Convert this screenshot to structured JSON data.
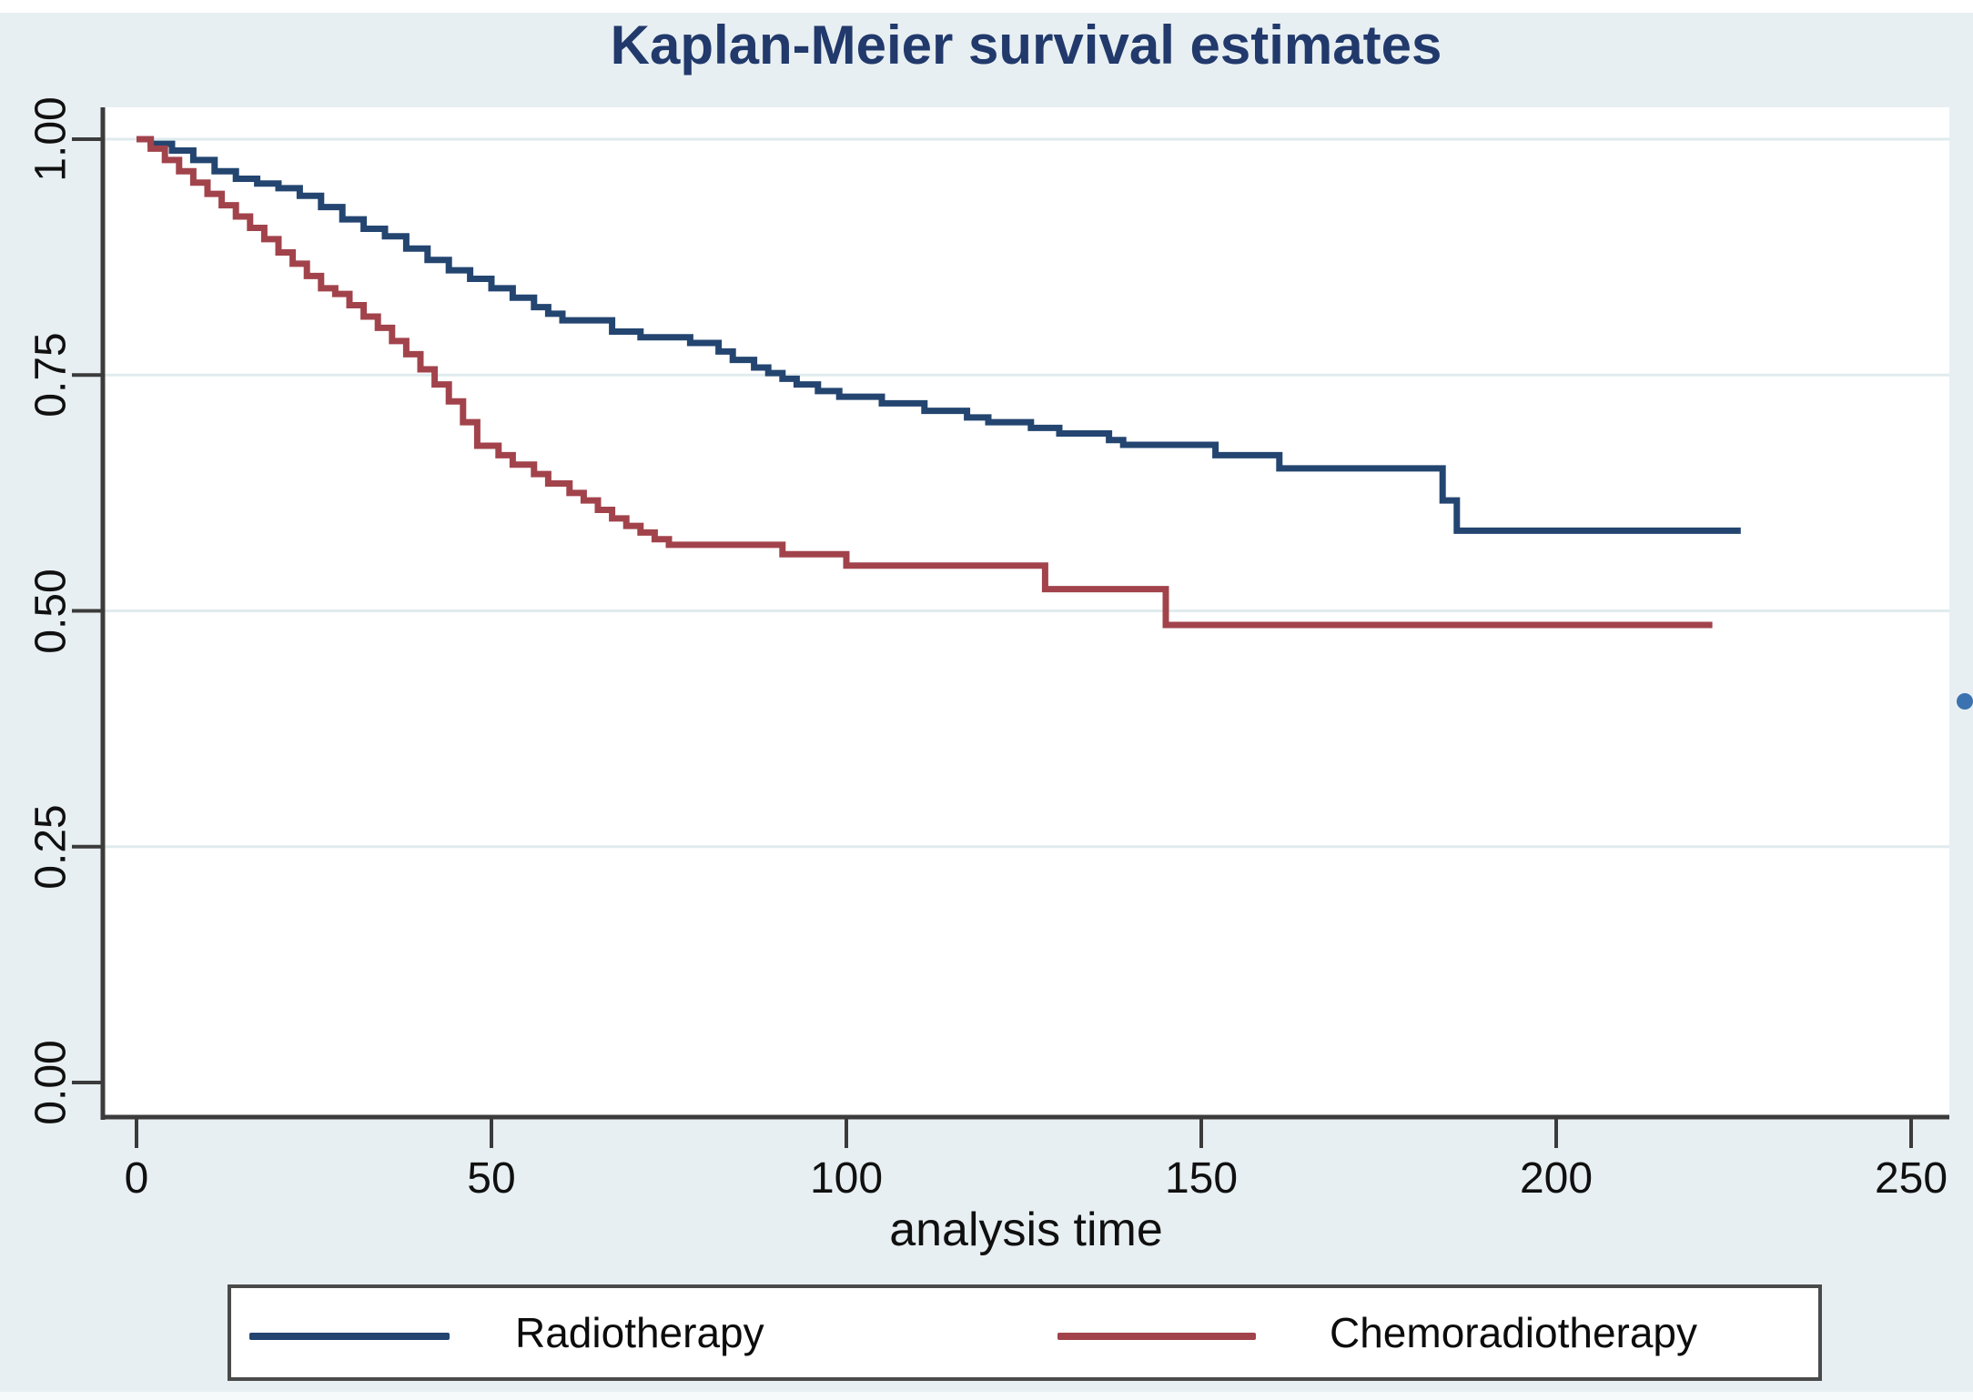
{
  "title": "Kaplan-Meier survival estimates",
  "x_axis_label": "analysis time",
  "colors": {
    "background": "#e8eff2",
    "plot_background": "#ffffff",
    "gridline": "#e0ebed",
    "axis": "#3b3b3b",
    "title_text": "#21396b",
    "tick_text": "#101010",
    "radiotherapy_line": "#234570",
    "chemoradiotherapy_line": "#a2434c",
    "legend_border": "#4a4a4a",
    "stray_dot": "#3b72b0"
  },
  "legend": {
    "items": [
      {
        "label": "Radiotherapy",
        "color": "#234570"
      },
      {
        "label": "Chemoradiotherapy",
        "color": "#a2434c"
      }
    ]
  },
  "chart_data": {
    "type": "line",
    "subtype": "kaplan-meier-step-function",
    "title": "Kaplan-Meier survival estimates",
    "xlabel": "analysis time",
    "ylabel": "",
    "xlim": [
      0,
      250
    ],
    "ylim": [
      0.0,
      1.0
    ],
    "grid": "horizontal gridlines at 0.25, 0.50, 0.75, 1.00",
    "legend_position": "bottom, boxed, horizontal",
    "x_ticks": [
      {
        "value": 0,
        "label": "0"
      },
      {
        "value": 50,
        "label": "50"
      },
      {
        "value": 100,
        "label": "100"
      },
      {
        "value": 150,
        "label": "150"
      },
      {
        "value": 200,
        "label": "200"
      },
      {
        "value": 250,
        "label": "250"
      }
    ],
    "y_ticks": [
      {
        "value": 0.0,
        "label": "0.00"
      },
      {
        "value": 0.25,
        "label": "0.25"
      },
      {
        "value": 0.5,
        "label": "0.50"
      },
      {
        "value": 0.75,
        "label": "0.75"
      },
      {
        "value": 1.0,
        "label": "1.00"
      }
    ],
    "series": [
      {
        "name": "Radiotherapy",
        "color": "#234570",
        "end_t": 226,
        "points": [
          [
            0,
            1.0
          ],
          [
            2,
            0.995
          ],
          [
            5,
            0.988
          ],
          [
            8,
            0.978
          ],
          [
            11,
            0.966
          ],
          [
            14,
            0.958
          ],
          [
            17,
            0.953
          ],
          [
            20,
            0.948
          ],
          [
            23,
            0.94
          ],
          [
            26,
            0.928
          ],
          [
            29,
            0.915
          ],
          [
            32,
            0.905
          ],
          [
            35,
            0.897
          ],
          [
            38,
            0.884
          ],
          [
            41,
            0.872
          ],
          [
            44,
            0.861
          ],
          [
            47,
            0.852
          ],
          [
            50,
            0.842
          ],
          [
            53,
            0.832
          ],
          [
            56,
            0.822
          ],
          [
            58,
            0.815
          ],
          [
            60,
            0.808
          ],
          [
            67,
            0.796
          ],
          [
            71,
            0.79
          ],
          [
            78,
            0.784
          ],
          [
            82,
            0.775
          ],
          [
            84,
            0.766
          ],
          [
            87,
            0.758
          ],
          [
            89,
            0.752
          ],
          [
            91,
            0.746
          ],
          [
            93,
            0.74
          ],
          [
            96,
            0.733
          ],
          [
            99,
            0.727
          ],
          [
            105,
            0.72
          ],
          [
            111,
            0.712
          ],
          [
            117,
            0.705
          ],
          [
            120,
            0.7
          ],
          [
            126,
            0.694
          ],
          [
            130,
            0.688
          ],
          [
            137,
            0.681
          ],
          [
            139,
            0.676
          ],
          [
            152,
            0.665
          ],
          [
            161,
            0.651
          ],
          [
            184,
            0.617
          ],
          [
            186,
            0.585
          ]
        ]
      },
      {
        "name": "Chemoradiotherapy",
        "color": "#a2434c",
        "end_t": 222,
        "points": [
          [
            0,
            1.0
          ],
          [
            2,
            0.99
          ],
          [
            4,
            0.978
          ],
          [
            6,
            0.966
          ],
          [
            8,
            0.954
          ],
          [
            10,
            0.942
          ],
          [
            12,
            0.93
          ],
          [
            14,
            0.918
          ],
          [
            16,
            0.906
          ],
          [
            18,
            0.894
          ],
          [
            20,
            0.88
          ],
          [
            22,
            0.868
          ],
          [
            24,
            0.855
          ],
          [
            26,
            0.842
          ],
          [
            28,
            0.836
          ],
          [
            30,
            0.824
          ],
          [
            32,
            0.812
          ],
          [
            34,
            0.8
          ],
          [
            36,
            0.786
          ],
          [
            38,
            0.772
          ],
          [
            40,
            0.756
          ],
          [
            42,
            0.74
          ],
          [
            44,
            0.722
          ],
          [
            46,
            0.7
          ],
          [
            48,
            0.675
          ],
          [
            51,
            0.665
          ],
          [
            53,
            0.655
          ],
          [
            56,
            0.645
          ],
          [
            58,
            0.635
          ],
          [
            61,
            0.625
          ],
          [
            63,
            0.617
          ],
          [
            65,
            0.607
          ],
          [
            67,
            0.598
          ],
          [
            69,
            0.59
          ],
          [
            71,
            0.583
          ],
          [
            73,
            0.576
          ],
          [
            75,
            0.57
          ],
          [
            91,
            0.56
          ],
          [
            100,
            0.548
          ],
          [
            128,
            0.523
          ],
          [
            145,
            0.485
          ]
        ]
      }
    ]
  }
}
